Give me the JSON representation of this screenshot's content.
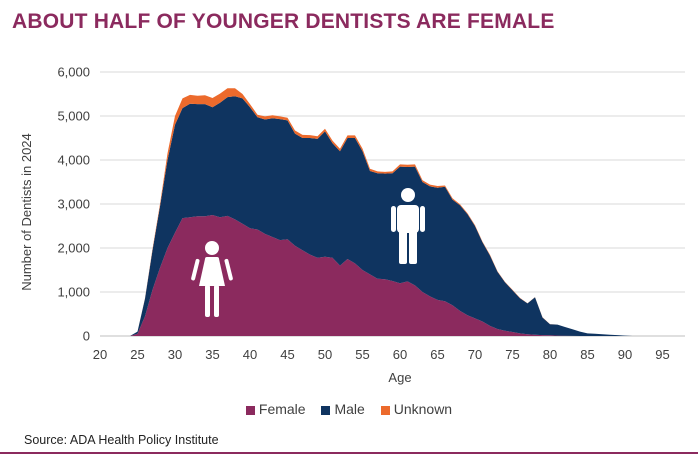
{
  "title": "ABOUT HALF OF YOUNGER DENTISTS ARE FEMALE",
  "source": "Source: ADA Health Policy Institute",
  "colors": {
    "female": "#8B2A5E",
    "male": "#0F3460",
    "unknown": "#EC6A2C",
    "icon": "#ffffff"
  },
  "icons": {
    "female": "female-person-icon",
    "male": "male-person-icon"
  },
  "chart_data": {
    "type": "area",
    "stacked": true,
    "title": "ABOUT HALF OF YOUNGER DENTISTS ARE FEMALE",
    "xlabel": "Age",
    "ylabel": "Number of Dentists in 2024",
    "xlim": [
      20,
      98
    ],
    "ylim": [
      0,
      6000
    ],
    "grid": true,
    "legend_position": "bottom",
    "xticks": [
      "20",
      "25",
      "30",
      "35",
      "40",
      "45",
      "50",
      "55",
      "60",
      "65",
      "70",
      "75",
      "80",
      "85",
      "90",
      "95"
    ],
    "yticks": [
      "0",
      "1,000",
      "2,000",
      "3,000",
      "4,000",
      "5,000",
      "6,000"
    ],
    "x": [
      24,
      25,
      26,
      27,
      28,
      29,
      30,
      31,
      32,
      33,
      34,
      35,
      36,
      37,
      38,
      39,
      40,
      41,
      42,
      43,
      44,
      45,
      46,
      47,
      48,
      49,
      50,
      51,
      52,
      53,
      54,
      55,
      56,
      57,
      58,
      59,
      60,
      61,
      62,
      63,
      64,
      65,
      66,
      67,
      68,
      69,
      70,
      71,
      72,
      73,
      74,
      75,
      76,
      77,
      78,
      79,
      80,
      81,
      82,
      83,
      84,
      85,
      86,
      87,
      88,
      89,
      90,
      91
    ],
    "series": [
      {
        "name": "Female",
        "values": [
          0,
          50,
          450,
          1050,
          1550,
          2000,
          2350,
          2680,
          2700,
          2720,
          2720,
          2750,
          2700,
          2730,
          2650,
          2550,
          2450,
          2420,
          2320,
          2250,
          2180,
          2200,
          2050,
          1950,
          1850,
          1780,
          1800,
          1780,
          1600,
          1750,
          1650,
          1500,
          1400,
          1300,
          1290,
          1250,
          1200,
          1240,
          1150,
          1000,
          900,
          820,
          790,
          700,
          570,
          470,
          400,
          330,
          230,
          160,
          120,
          90,
          60,
          40,
          30,
          20,
          15,
          10,
          5,
          3,
          0,
          0,
          0,
          0,
          0,
          0,
          0,
          0
        ]
      },
      {
        "name": "Male",
        "values": [
          0,
          50,
          400,
          900,
          1400,
          2000,
          2450,
          2500,
          2580,
          2550,
          2550,
          2450,
          2600,
          2700,
          2800,
          2850,
          2750,
          2550,
          2600,
          2700,
          2750,
          2700,
          2550,
          2550,
          2650,
          2700,
          2850,
          2600,
          2600,
          2750,
          2850,
          2700,
          2350,
          2400,
          2400,
          2450,
          2650,
          2600,
          2700,
          2500,
          2500,
          2550,
          2600,
          2400,
          2400,
          2300,
          2100,
          1800,
          1600,
          1300,
          1100,
          950,
          800,
          700,
          850,
          400,
          250,
          250,
          200,
          150,
          100,
          60,
          50,
          40,
          30,
          20,
          10,
          0
        ]
      },
      {
        "name": "Unknown",
        "values": [
          0,
          0,
          10,
          30,
          50,
          150,
          200,
          220,
          200,
          190,
          200,
          210,
          210,
          200,
          180,
          100,
          70,
          60,
          70,
          65,
          60,
          60,
          70,
          70,
          65,
          60,
          60,
          60,
          55,
          60,
          60,
          60,
          50,
          40,
          40,
          40,
          50,
          50,
          50,
          40,
          40,
          40,
          30,
          30,
          25,
          20,
          20,
          15,
          15,
          10,
          10,
          10,
          5,
          5,
          5,
          5,
          5,
          0,
          0,
          0,
          0,
          0,
          0,
          0,
          0,
          0,
          0,
          0
        ]
      }
    ]
  }
}
